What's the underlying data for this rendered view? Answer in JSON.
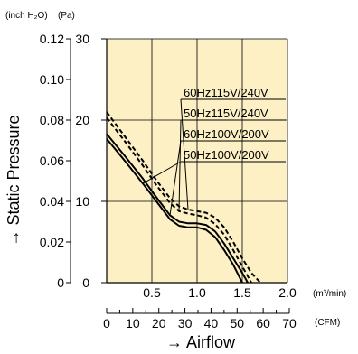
{
  "chart_data": {
    "type": "line",
    "title": "",
    "ylabel": "→ Static Pressure",
    "xlabel": "→ Airflow",
    "y_units": {
      "secondary": "(inch H₂O)",
      "primary": "(Pa)"
    },
    "x_units": {
      "primary": "(m³/min)",
      "secondary": "(CFM)"
    },
    "xlim": [
      0,
      2.0
    ],
    "ylim": [
      0,
      30
    ],
    "x_ticks": [
      "0.5",
      "1.0",
      "1.5",
      "2.0"
    ],
    "y_ticks": [
      "0",
      "10",
      "20",
      "30"
    ],
    "y2_ticks": [
      "0",
      "0.02",
      "0.04",
      "0.06",
      "0.08",
      "0.10",
      "0.12"
    ],
    "cfm_ticks": [
      "0",
      "10",
      "20",
      "30",
      "40",
      "50",
      "60",
      "70"
    ],
    "grid": true,
    "legend_placement": "top-right",
    "series": [
      {
        "name": "60Hz115V/240V",
        "style": "dashed",
        "x": [
          0,
          0.2,
          0.4,
          0.55,
          0.7,
          0.8,
          0.9,
          1.0,
          1.1,
          1.2,
          1.3,
          1.4,
          1.5,
          1.6,
          1.7
        ],
        "y": [
          21,
          18,
          15,
          12.6,
          10.4,
          9.4,
          9.0,
          8.8,
          8.6,
          8.0,
          6.8,
          5.0,
          3.0,
          1.2,
          0
        ]
      },
      {
        "name": "50Hz115V/240V",
        "style": "dashed",
        "x": [
          0,
          0.2,
          0.4,
          0.55,
          0.7,
          0.8,
          0.9,
          1.0,
          1.1,
          1.2,
          1.3,
          1.4,
          1.5,
          1.6
        ],
        "y": [
          20.3,
          17.4,
          14.4,
          12.0,
          9.8,
          8.8,
          8.5,
          8.3,
          8.0,
          7.2,
          5.9,
          4.0,
          2.0,
          0
        ]
      },
      {
        "name": "60Hz100V/200V",
        "style": "solid",
        "x": [
          0,
          0.2,
          0.4,
          0.55,
          0.7,
          0.8,
          0.9,
          1.0,
          1.1,
          1.2,
          1.3,
          1.4,
          1.5,
          1.56
        ],
        "y": [
          18.3,
          15.6,
          12.8,
          10.5,
          8.3,
          7.5,
          7.3,
          7.3,
          7.1,
          6.3,
          4.8,
          3.0,
          1.2,
          0
        ]
      },
      {
        "name": "50Hz100V/200V",
        "style": "solid",
        "x": [
          0,
          0.2,
          0.4,
          0.55,
          0.7,
          0.8,
          0.9,
          1.0,
          1.1,
          1.2,
          1.3,
          1.4,
          1.5
        ],
        "y": [
          17.7,
          15.0,
          12.2,
          10.0,
          7.8,
          7.0,
          6.8,
          6.8,
          6.5,
          5.6,
          4.0,
          2.2,
          0
        ]
      }
    ]
  }
}
